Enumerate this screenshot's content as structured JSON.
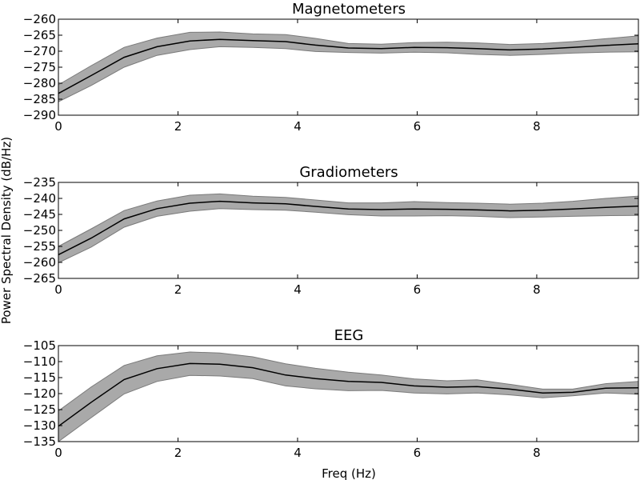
{
  "figure": {
    "ylabel": "Power Spectral Density (dB/Hz)",
    "xlabel": "Freq (Hz)"
  },
  "chart_data": [
    {
      "type": "line",
      "title": "Magnetometers",
      "xlabel": "",
      "ylabel": "",
      "xlim": [
        0,
        9.7
      ],
      "ylim": [
        -290,
        -260
      ],
      "xticks": [
        0,
        2,
        4,
        6,
        8
      ],
      "yticks": [
        -290,
        -285,
        -280,
        -275,
        -270,
        -265,
        -260
      ],
      "grid": false,
      "colors": {
        "line": "#000000",
        "band": "#a9a9a9",
        "band_edge": "#7a7a7a"
      },
      "x": [
        0,
        0.55,
        1.1,
        1.65,
        2.2,
        2.7,
        3.25,
        3.8,
        4.3,
        4.85,
        5.4,
        5.95,
        6.5,
        7.0,
        7.55,
        8.1,
        8.6,
        9.15,
        9.7
      ],
      "mean": [
        -283.2,
        -277.6,
        -271.9,
        -268.6,
        -266.8,
        -266.3,
        -266.7,
        -267.0,
        -268.1,
        -269.0,
        -269.2,
        -268.8,
        -268.9,
        -269.2,
        -269.6,
        -269.3,
        -268.8,
        -268.2,
        -267.7
      ],
      "upper": [
        -280.5,
        -274.5,
        -268.8,
        -265.9,
        -264.1,
        -264.0,
        -264.6,
        -264.8,
        -266.0,
        -267.6,
        -267.8,
        -267.3,
        -267.2,
        -267.4,
        -267.9,
        -267.6,
        -267.0,
        -266.1,
        -265.2
      ],
      "lower": [
        -285.8,
        -280.7,
        -275.0,
        -271.3,
        -269.5,
        -268.6,
        -268.8,
        -269.2,
        -270.1,
        -270.4,
        -270.6,
        -270.3,
        -270.5,
        -271.0,
        -271.3,
        -271.0,
        -270.6,
        -270.3,
        -270.2
      ]
    },
    {
      "type": "line",
      "title": "Gradiometers",
      "xlabel": "",
      "ylabel": "",
      "xlim": [
        0,
        9.7
      ],
      "ylim": [
        -265,
        -235
      ],
      "xticks": [
        0,
        2,
        4,
        6,
        8
      ],
      "yticks": [
        -265,
        -260,
        -255,
        -250,
        -245,
        -240,
        -235
      ],
      "grid": false,
      "colors": {
        "line": "#000000",
        "band": "#a9a9a9",
        "band_edge": "#7a7a7a"
      },
      "x": [
        0,
        0.55,
        1.1,
        1.65,
        2.2,
        2.7,
        3.25,
        3.8,
        4.3,
        4.85,
        5.4,
        5.95,
        6.5,
        7.0,
        7.55,
        8.1,
        8.6,
        9.15,
        9.7
      ],
      "mean": [
        -257.6,
        -252.4,
        -246.4,
        -243.2,
        -241.5,
        -240.9,
        -241.4,
        -241.7,
        -242.5,
        -243.3,
        -243.5,
        -243.3,
        -243.4,
        -243.6,
        -243.9,
        -243.7,
        -243.3,
        -242.8,
        -242.4
      ],
      "upper": [
        -255.0,
        -249.5,
        -243.8,
        -240.8,
        -239.0,
        -238.6,
        -239.3,
        -239.7,
        -240.5,
        -241.4,
        -241.4,
        -241.0,
        -241.3,
        -241.5,
        -241.8,
        -241.5,
        -240.9,
        -240.0,
        -239.3
      ],
      "lower": [
        -260.1,
        -255.2,
        -249.0,
        -245.6,
        -244.0,
        -243.2,
        -243.5,
        -243.7,
        -244.3,
        -245.1,
        -245.5,
        -245.5,
        -245.4,
        -245.6,
        -246.0,
        -245.8,
        -245.6,
        -245.4,
        -245.3
      ]
    },
    {
      "type": "line",
      "title": "EEG",
      "xlabel": "",
      "ylabel": "",
      "xlim": [
        0,
        9.7
      ],
      "ylim": [
        -135,
        -105
      ],
      "xticks": [
        0,
        2,
        4,
        6,
        8
      ],
      "yticks": [
        -135,
        -130,
        -125,
        -120,
        -115,
        -110,
        -105
      ],
      "grid": false,
      "colors": {
        "line": "#000000",
        "band": "#a9a9a9",
        "band_edge": "#7a7a7a"
      },
      "x": [
        0,
        0.55,
        1.1,
        1.65,
        2.2,
        2.7,
        3.25,
        3.8,
        4.3,
        4.85,
        5.4,
        5.95,
        6.5,
        7.0,
        7.55,
        8.1,
        8.6,
        9.15,
        9.7
      ],
      "mean": [
        -130.2,
        -122.7,
        -115.6,
        -112.2,
        -110.6,
        -110.8,
        -111.9,
        -114.2,
        -115.3,
        -116.2,
        -116.5,
        -117.6,
        -118.0,
        -117.8,
        -118.6,
        -119.8,
        -119.6,
        -118.3,
        -118.2
      ],
      "upper": [
        -125.4,
        -117.9,
        -111.2,
        -108.2,
        -107.0,
        -107.3,
        -108.5,
        -110.7,
        -112.1,
        -113.3,
        -114.2,
        -115.4,
        -116.0,
        -115.7,
        -117.1,
        -118.6,
        -118.6,
        -116.9,
        -116.2
      ],
      "lower": [
        -135.0,
        -127.5,
        -120.1,
        -116.2,
        -114.3,
        -114.5,
        -115.3,
        -117.6,
        -118.5,
        -119.1,
        -119.0,
        -119.8,
        -120.1,
        -119.8,
        -120.4,
        -121.3,
        -120.7,
        -119.8,
        -120.2
      ]
    }
  ]
}
